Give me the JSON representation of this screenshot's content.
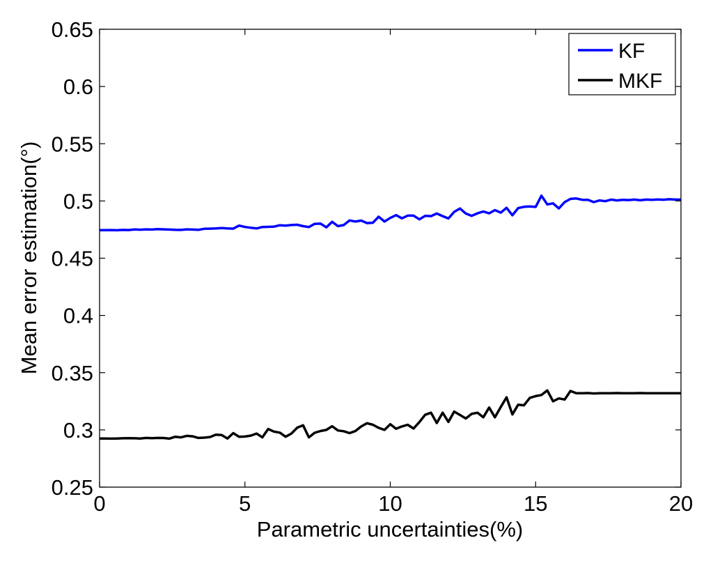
{
  "chart_data": {
    "type": "line",
    "title": "",
    "xlabel": "Parametric uncertainties(%)",
    "ylabel": "Mean error estimation(°)",
    "xlim": [
      0,
      20
    ],
    "ylim": [
      0.25,
      0.65
    ],
    "xticks": [
      0,
      5,
      10,
      15,
      20
    ],
    "xtick_labels": [
      "0",
      "5",
      "10",
      "15",
      "20"
    ],
    "yticks": [
      0.25,
      0.3,
      0.35,
      0.4,
      0.45,
      0.5,
      0.55,
      0.6,
      0.65
    ],
    "ytick_labels": [
      "0.25",
      "0.3",
      "0.35",
      "0.4",
      "0.45",
      "0.5",
      "0.55",
      "0.6",
      "0.65"
    ],
    "grid": false,
    "legend_position": "top-right",
    "x": [
      0,
      0.2,
      0.4,
      0.6,
      0.8,
      1.0,
      1.2,
      1.4,
      1.6,
      1.8,
      2.0,
      2.2,
      2.4,
      2.6,
      2.8,
      3.0,
      3.2,
      3.4,
      3.6,
      3.8,
      4.0,
      4.2,
      4.4,
      4.6,
      4.8,
      5.0,
      5.2,
      5.4,
      5.6,
      5.8,
      6.0,
      6.2,
      6.4,
      6.6,
      6.8,
      7.0,
      7.2,
      7.4,
      7.6,
      7.8,
      8.0,
      8.2,
      8.4,
      8.6,
      8.8,
      9.0,
      9.2,
      9.4,
      9.6,
      9.8,
      10.0,
      10.2,
      10.4,
      10.6,
      10.8,
      11.0,
      11.2,
      11.4,
      11.6,
      11.8,
      12.0,
      12.2,
      12.4,
      12.6,
      12.8,
      13.0,
      13.2,
      13.4,
      13.6,
      13.8,
      14.0,
      14.2,
      14.4,
      14.6,
      14.8,
      15.0,
      15.2,
      15.4,
      15.6,
      15.8,
      16.0,
      16.2,
      16.4,
      16.6,
      16.8,
      17.0,
      17.2,
      17.4,
      17.6,
      17.8,
      18.0,
      18.2,
      18.4,
      18.6,
      18.8,
      19.0,
      19.2,
      19.4,
      19.6,
      19.8,
      20.0
    ],
    "series": [
      {
        "name": "KF",
        "color": "#0000ff",
        "values": [
          0.4745,
          0.4745,
          0.4746,
          0.4744,
          0.4747,
          0.4746,
          0.4751,
          0.4749,
          0.4752,
          0.475,
          0.4754,
          0.4752,
          0.475,
          0.4748,
          0.4747,
          0.4752,
          0.475,
          0.4748,
          0.4757,
          0.4758,
          0.476,
          0.4763,
          0.476,
          0.4758,
          0.4785,
          0.4773,
          0.4766,
          0.476,
          0.4773,
          0.4774,
          0.4776,
          0.4788,
          0.4785,
          0.479,
          0.4792,
          0.478,
          0.4772,
          0.48,
          0.4802,
          0.477,
          0.4818,
          0.478,
          0.479,
          0.483,
          0.482,
          0.4829,
          0.4807,
          0.481,
          0.4862,
          0.482,
          0.4852,
          0.4876,
          0.4848,
          0.4872,
          0.4872,
          0.484,
          0.487,
          0.4868,
          0.489,
          0.4868,
          0.4847,
          0.4905,
          0.4934,
          0.489,
          0.487,
          0.4892,
          0.4908,
          0.4892,
          0.492,
          0.4898,
          0.494,
          0.4875,
          0.4938,
          0.4949,
          0.4952,
          0.4948,
          0.5046,
          0.497,
          0.4979,
          0.4935,
          0.499,
          0.5018,
          0.5022,
          0.501,
          0.501,
          0.499,
          0.5005,
          0.4998,
          0.5012,
          0.5005,
          0.501,
          0.5008,
          0.5012,
          0.5006,
          0.5012,
          0.501,
          0.5013,
          0.5011,
          0.5015,
          0.5012,
          0.5012
        ]
      },
      {
        "name": "MKF",
        "color": "#000000",
        "values": [
          0.2925,
          0.2925,
          0.2924,
          0.2925,
          0.2927,
          0.2928,
          0.2927,
          0.2925,
          0.293,
          0.2928,
          0.293,
          0.2929,
          0.2924,
          0.294,
          0.2935,
          0.2948,
          0.2944,
          0.293,
          0.2932,
          0.2938,
          0.2958,
          0.2955,
          0.2925,
          0.2972,
          0.294,
          0.2942,
          0.295,
          0.2968,
          0.2935,
          0.3008,
          0.2985,
          0.2976,
          0.294,
          0.2968,
          0.302,
          0.304,
          0.2935,
          0.2975,
          0.299,
          0.3,
          0.3032,
          0.2995,
          0.2988,
          0.2972,
          0.299,
          0.303,
          0.3058,
          0.3045,
          0.3018,
          0.3,
          0.305,
          0.301,
          0.303,
          0.3045,
          0.3012,
          0.3068,
          0.3132,
          0.315,
          0.306,
          0.315,
          0.307,
          0.316,
          0.313,
          0.31,
          0.314,
          0.315,
          0.311,
          0.3195,
          0.311,
          0.32,
          0.3285,
          0.3135,
          0.322,
          0.3215,
          0.328,
          0.3295,
          0.3305,
          0.3345,
          0.325,
          0.3275,
          0.3265,
          0.334,
          0.332,
          0.332,
          0.3322,
          0.3318,
          0.332,
          0.3321,
          0.332,
          0.3322,
          0.332,
          0.3321,
          0.332,
          0.3322,
          0.332,
          0.3321,
          0.332,
          0.3321,
          0.332,
          0.332,
          0.332
        ]
      }
    ]
  }
}
